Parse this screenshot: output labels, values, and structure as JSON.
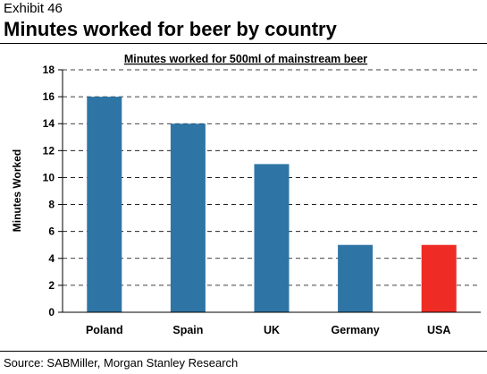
{
  "header": {
    "exhibit": "Exhibit 46",
    "title": "Minutes worked for beer by country"
  },
  "footer": {
    "source": "Source: SABMiller, Morgan Stanley Research"
  },
  "chart_data": {
    "type": "bar",
    "title": "Minutes worked for 500ml of mainstream beer",
    "xlabel": "",
    "ylabel": "Minutes Worked",
    "categories": [
      "Poland",
      "Spain",
      "UK",
      "Germany",
      "USA"
    ],
    "values": [
      16,
      14,
      11,
      5,
      5
    ],
    "ylim": [
      0,
      18
    ],
    "yticks": [
      0,
      2,
      4,
      6,
      8,
      10,
      12,
      14,
      16,
      18
    ],
    "grid": "horizontal dashed",
    "colors": {
      "default_bar": "#2e75a6",
      "highlight_bar": "#ee2b24",
      "highlight_category": "USA",
      "grid": "#000000"
    }
  }
}
